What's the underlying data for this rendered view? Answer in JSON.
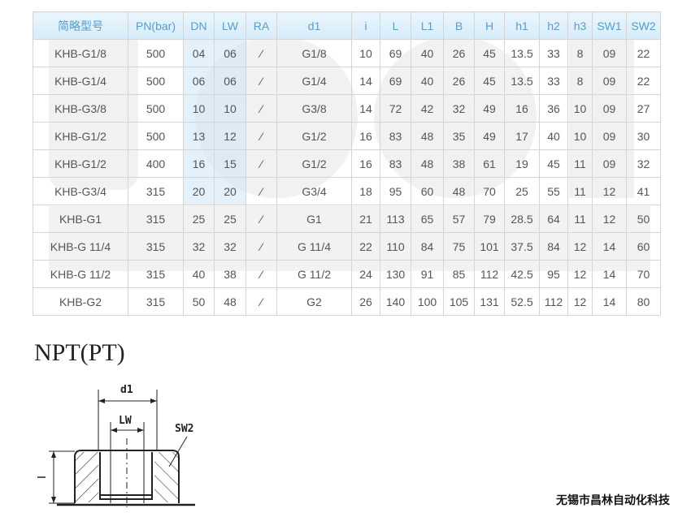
{
  "table": {
    "headers": [
      "简略型号",
      "PN(bar)",
      "DN",
      "LW",
      "RA",
      "d1",
      "i",
      "L",
      "L1",
      "B",
      "H",
      "h1",
      "h2",
      "h3",
      "SW1",
      "SW2"
    ],
    "rows": [
      [
        "KHB-G1/8",
        "500",
        "04",
        "06",
        "⁄",
        "G1/8",
        "10",
        "69",
        "40",
        "26",
        "45",
        "13.5",
        "33",
        "8",
        "09",
        "22"
      ],
      [
        "KHB-G1/4",
        "500",
        "06",
        "06",
        "⁄",
        "G1/4",
        "14",
        "69",
        "40",
        "26",
        "45",
        "13.5",
        "33",
        "8",
        "09",
        "22"
      ],
      [
        "KHB-G3/8",
        "500",
        "10",
        "10",
        "⁄",
        "G3/8",
        "14",
        "72",
        "42",
        "32",
        "49",
        "16",
        "36",
        "10",
        "09",
        "27"
      ],
      [
        "KHB-G1/2",
        "500",
        "13",
        "12",
        "⁄",
        "G1/2",
        "16",
        "83",
        "48",
        "35",
        "49",
        "17",
        "40",
        "10",
        "09",
        "30"
      ],
      [
        "KHB-G1/2",
        "400",
        "16",
        "15",
        "⁄",
        "G1/2",
        "16",
        "83",
        "48",
        "38",
        "61",
        "19",
        "45",
        "11",
        "09",
        "32"
      ],
      [
        "KHB-G3/4",
        "315",
        "20",
        "20",
        "⁄",
        "G3/4",
        "18",
        "95",
        "60",
        "48",
        "70",
        "25",
        "55",
        "11",
        "12",
        "41"
      ],
      [
        "KHB-G1",
        "315",
        "25",
        "25",
        "⁄",
        "G1",
        "21",
        "113",
        "65",
        "57",
        "79",
        "28.5",
        "64",
        "11",
        "12",
        "50"
      ],
      [
        "KHB-G 11/4",
        "315",
        "32",
        "32",
        "⁄",
        "G 11/4",
        "22",
        "110",
        "84",
        "75",
        "101",
        "37.5",
        "84",
        "12",
        "14",
        "60"
      ],
      [
        "KHB-G 11/2",
        "315",
        "40",
        "38",
        "⁄",
        "G 11/2",
        "24",
        "130",
        "91",
        "85",
        "112",
        "42.5",
        "95",
        "12",
        "14",
        "70"
      ],
      [
        "KHB-G2",
        "315",
        "50",
        "48",
        "⁄",
        "G2",
        "26",
        "140",
        "100",
        "105",
        "131",
        "52.5",
        "112",
        "12",
        "14",
        "80"
      ]
    ],
    "header_color": "#5a9cc8",
    "header_bg": "#dff0fb"
  },
  "section_heading": "NPT(PT)",
  "drawing": {
    "d1_label": "d1",
    "lw_label": "LW",
    "sw2_label": "SW2"
  },
  "footer": "无锡市昌林自动化科技"
}
